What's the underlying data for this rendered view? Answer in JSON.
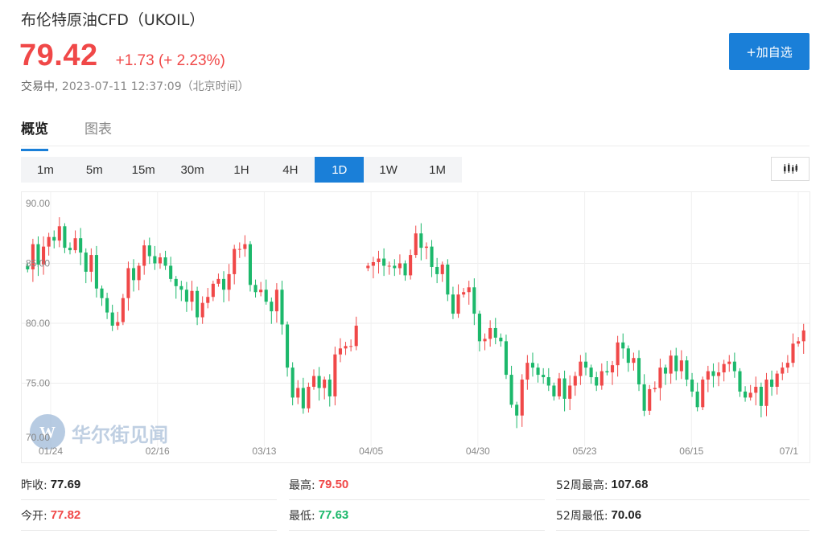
{
  "header": {
    "title": "布伦特原油CFD（UKOIL）",
    "price": "79.42",
    "change": "+1.73 (+ 2.23%)",
    "status": "交易中,",
    "timestamp": "2023-07-11 12:37:09（北京时间）",
    "add_label": "+加自选"
  },
  "tabs": [
    {
      "label": "概览",
      "active": true
    },
    {
      "label": "图表",
      "active": false
    }
  ],
  "ranges": [
    "1m",
    "5m",
    "15m",
    "30m",
    "1H",
    "4H",
    "1D",
    "1W",
    "1M"
  ],
  "active_range": "1D",
  "chart_type_icon": "candlestick-icon",
  "watermark": "华尔街见闻",
  "colors": {
    "up": "#f04848",
    "down": "#1cb86b",
    "accent": "#1a7fd8"
  },
  "stats": {
    "prev_close_label": "昨收:",
    "prev_close": "77.69",
    "high_label": "最高:",
    "high": "79.50",
    "w52_high_label": "52周最高:",
    "w52_high": "107.68",
    "open_label": "今开:",
    "open": "77.82",
    "low_label": "最低:",
    "low": "77.63",
    "w52_low_label": "52周最低:",
    "w52_low": "70.06"
  },
  "chart_data": {
    "type": "candlestick",
    "title": "",
    "xlabel": "",
    "ylabel": "",
    "ylim": [
      70,
      90
    ],
    "yticks": [
      "90.00",
      "85.00",
      "80.00",
      "75.00",
      "70.00"
    ],
    "xticks": [
      "01/24",
      "02/16",
      "03/13",
      "04/05",
      "04/30",
      "05/23",
      "06/15",
      "07/1"
    ],
    "grid": true,
    "segments": [
      {
        "close": [
          84.5,
          86.6,
          84.9,
          86.4,
          87.2,
          86.9,
          88.1,
          86.3,
          86.1,
          87.1,
          85.9,
          84.3,
          85.7,
          82.9,
          82.1,
          80.9,
          79.8,
          80.1,
          82.1,
          84.6,
          83.6,
          84.8,
          86.5,
          85.6,
          85.0,
          85.5,
          84.8,
          83.7,
          83.1,
          82.8,
          81.8,
          82.7,
          80.5,
          81.7,
          82.2,
          83.3,
          83.7,
          82.8,
          84.1,
          86.2,
          86.2,
          86.6,
          83.2,
          82.6,
          82.8,
          81.8,
          81.0,
          82.8,
          79.9,
          76.3,
          73.8,
          74.6,
          72.9,
          74.7,
          75.6,
          74.6,
          75.3,
          73.9,
          77.4,
          77.9,
          78.1,
          78.1,
          79.8
        ]
      },
      {
        "close": [
          84.8,
          85.1,
          85.4,
          84.8,
          84.8,
          84.6,
          85.0,
          84.0,
          85.7,
          87.5,
          86.3,
          86.4,
          84.7,
          84.1,
          84.9,
          82.4,
          80.8,
          82.4,
          82.6,
          83.0,
          80.8,
          78.5,
          78.7,
          79.6,
          78.8,
          78.5,
          75.7,
          73.2,
          72.3,
          75.3,
          76.7,
          76.3,
          75.7,
          75.5,
          74.8,
          73.9,
          75.4,
          73.7,
          74.8,
          75.6,
          76.8,
          76.3,
          75.5,
          74.8,
          76.0,
          75.9,
          76.5,
          78.4,
          77.9,
          76.7,
          77.1,
          74.9,
          72.7,
          74.5,
          74.6,
          76.3,
          75.8,
          77.3,
          76.0,
          76.9,
          75.3,
          74.3,
          73.0,
          75.3,
          76.0,
          75.6,
          75.9,
          76.6,
          76.8,
          76.0,
          74.3,
          73.8,
          74.2,
          74.7,
          73.1,
          75.3,
          74.7,
          75.8,
          76.3,
          76.7,
          78.3,
          78.5,
          79.4
        ]
      }
    ]
  }
}
